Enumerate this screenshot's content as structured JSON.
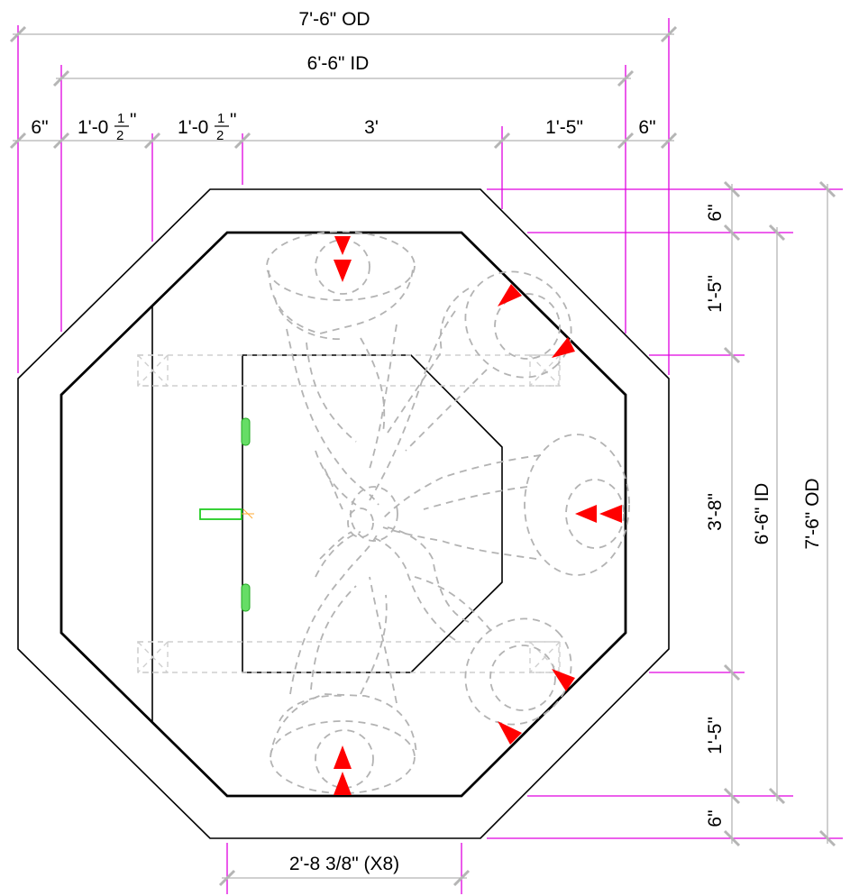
{
  "dimensions": {
    "top": {
      "overall_od": "7'-6\" OD",
      "overall_id": "6'-6\" ID",
      "wall_left": "6\"",
      "seg1": "1'-0",
      "seg1_frac": "1",
      "seg1_den": "2",
      "seg1_inch": "\"",
      "seg2": "1'-0",
      "seg2_frac": "1",
      "seg2_den": "2",
      "seg2_inch": "\"",
      "seg3": "3'",
      "seg4": "1'-5\"",
      "wall_right": "6\""
    },
    "right": {
      "wall_top": "6\"",
      "seg_top": "1'-5\"",
      "seg_mid": "3'-8\"",
      "seg_bottom": "1'-5\"",
      "wall_bottom": "6\"",
      "overall_id": "6'-6\" ID",
      "overall_od": "7'-6\" OD"
    },
    "bottom": {
      "side_length": "2'-8 3/8\" (X8)"
    }
  },
  "colors": {
    "extension_lines": "#e000e0",
    "dimension_lines": "#b5b5b5",
    "walls": "#000000",
    "hidden_equipment": "#b3b3b3",
    "flow_arrows": "#ff0000",
    "access_fixtures": "#22cc22"
  }
}
